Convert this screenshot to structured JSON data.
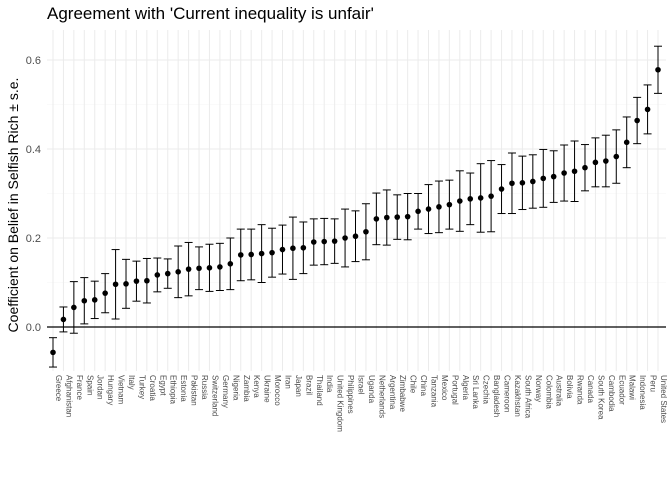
{
  "chart_data": {
    "type": "scatter",
    "title": "Agreement with 'Current inequality is unfair'",
    "ylabel": "Coefficient on Belief in Selfish Rich ± s.e.",
    "xlabel": "",
    "ylim": [
      -0.1,
      0.66
    ],
    "yticks": [
      0.0,
      0.2,
      0.4,
      0.6
    ],
    "ytick_labels": [
      "0.0",
      "0.2",
      "0.4",
      "0.6"
    ],
    "reference_line": 0,
    "grid": true,
    "error_bars": "± s.e.",
    "points": [
      {
        "country": "Greece",
        "estimate": -0.057,
        "se": 0.033
      },
      {
        "country": "Afghanistan",
        "estimate": 0.017,
        "se": 0.028
      },
      {
        "country": "France",
        "estimate": 0.044,
        "se": 0.058
      },
      {
        "country": "Spain",
        "estimate": 0.059,
        "se": 0.052
      },
      {
        "country": "Jordan",
        "estimate": 0.061,
        "se": 0.042
      },
      {
        "country": "Hungary",
        "estimate": 0.076,
        "se": 0.044
      },
      {
        "country": "Vietnam",
        "estimate": 0.096,
        "se": 0.078
      },
      {
        "country": "Italy",
        "estimate": 0.097,
        "se": 0.055
      },
      {
        "country": "Turkey",
        "estimate": 0.103,
        "se": 0.045
      },
      {
        "country": "Croatia",
        "estimate": 0.104,
        "se": 0.05
      },
      {
        "country": "Egypt",
        "estimate": 0.117,
        "se": 0.038
      },
      {
        "country": "Ethiopia",
        "estimate": 0.12,
        "se": 0.033
      },
      {
        "country": "Estonia",
        "estimate": 0.124,
        "se": 0.058
      },
      {
        "country": "Pakistan",
        "estimate": 0.13,
        "se": 0.06
      },
      {
        "country": "Russia",
        "estimate": 0.132,
        "se": 0.048
      },
      {
        "country": "Switzerland",
        "estimate": 0.133,
        "se": 0.053
      },
      {
        "country": "Germany",
        "estimate": 0.135,
        "se": 0.053
      },
      {
        "country": "Nigeria",
        "estimate": 0.142,
        "se": 0.058
      },
      {
        "country": "Zambia",
        "estimate": 0.162,
        "se": 0.058
      },
      {
        "country": "Kenya",
        "estimate": 0.163,
        "se": 0.057
      },
      {
        "country": "Ukraine",
        "estimate": 0.165,
        "se": 0.065
      },
      {
        "country": "Morocco",
        "estimate": 0.167,
        "se": 0.055
      },
      {
        "country": "Iran",
        "estimate": 0.174,
        "se": 0.055
      },
      {
        "country": "Japan",
        "estimate": 0.177,
        "se": 0.07
      },
      {
        "country": "Brazil",
        "estimate": 0.178,
        "se": 0.058
      },
      {
        "country": "Thailand",
        "estimate": 0.191,
        "se": 0.052
      },
      {
        "country": "India",
        "estimate": 0.192,
        "se": 0.052
      },
      {
        "country": "United Kingdom",
        "estimate": 0.193,
        "se": 0.05
      },
      {
        "country": "Philippines",
        "estimate": 0.2,
        "se": 0.065
      },
      {
        "country": "Israel",
        "estimate": 0.204,
        "se": 0.057
      },
      {
        "country": "Uganda",
        "estimate": 0.214,
        "se": 0.063
      },
      {
        "country": "Netherlands",
        "estimate": 0.243,
        "se": 0.058
      },
      {
        "country": "Argentina",
        "estimate": 0.246,
        "se": 0.062
      },
      {
        "country": "Zimbabwe",
        "estimate": 0.247,
        "se": 0.05
      },
      {
        "country": "Chile",
        "estimate": 0.248,
        "se": 0.052
      },
      {
        "country": "China",
        "estimate": 0.26,
        "se": 0.04
      },
      {
        "country": "Tanzania",
        "estimate": 0.265,
        "se": 0.055
      },
      {
        "country": "Mexico",
        "estimate": 0.27,
        "se": 0.058
      },
      {
        "country": "Portugal",
        "estimate": 0.275,
        "se": 0.055
      },
      {
        "country": "Algeria",
        "estimate": 0.283,
        "se": 0.068
      },
      {
        "country": "Sri Lanka",
        "estimate": 0.288,
        "se": 0.058
      },
      {
        "country": "Czechia",
        "estimate": 0.29,
        "se": 0.077
      },
      {
        "country": "Bangladesh",
        "estimate": 0.294,
        "se": 0.08
      },
      {
        "country": "Cameroon",
        "estimate": 0.31,
        "se": 0.055
      },
      {
        "country": "Kazakhstan",
        "estimate": 0.323,
        "se": 0.068
      },
      {
        "country": "South Africa",
        "estimate": 0.324,
        "se": 0.06
      },
      {
        "country": "Norway",
        "estimate": 0.327,
        "se": 0.06
      },
      {
        "country": "Colombia",
        "estimate": 0.334,
        "se": 0.065
      },
      {
        "country": "Australia",
        "estimate": 0.338,
        "se": 0.058
      },
      {
        "country": "Bolivia",
        "estimate": 0.346,
        "se": 0.063
      },
      {
        "country": "Rwanda",
        "estimate": 0.35,
        "se": 0.068
      },
      {
        "country": "Canada",
        "estimate": 0.358,
        "se": 0.052
      },
      {
        "country": "South Korea",
        "estimate": 0.37,
        "se": 0.055
      },
      {
        "country": "Cambodia",
        "estimate": 0.373,
        "se": 0.058
      },
      {
        "country": "Ecuador",
        "estimate": 0.383,
        "se": 0.06
      },
      {
        "country": "Malawi",
        "estimate": 0.415,
        "se": 0.057
      },
      {
        "country": "Indonesia",
        "estimate": 0.464,
        "se": 0.052
      },
      {
        "country": "Peru",
        "estimate": 0.489,
        "se": 0.055
      },
      {
        "country": "United States",
        "estimate": 0.578,
        "se": 0.053
      }
    ]
  }
}
